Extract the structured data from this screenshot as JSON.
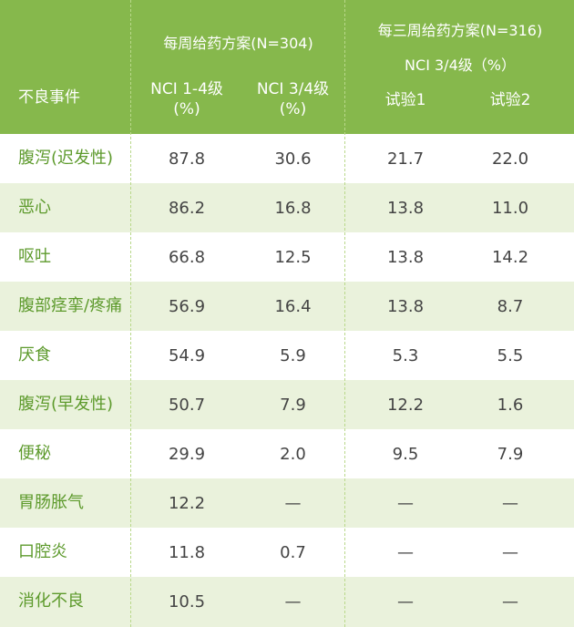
{
  "header": {
    "col_event": "不良事件",
    "group1": "每周给药方案(N=304)",
    "group2_line1": "每三周给药方案(N=316)",
    "group2_line2": "NCI 3/4级（%）",
    "sub1_line1": "NCI 1-4级",
    "sub1_line2": "(%)",
    "sub2_line1": "NCI 3/4级",
    "sub2_line2": "(%)",
    "sub3": "试验1",
    "sub4": "试验2"
  },
  "rows": [
    {
      "event": "腹泻(迟发性)",
      "v1": "87.8",
      "v2": "30.6",
      "v3": "21.7",
      "v4": "22.0"
    },
    {
      "event": "恶心",
      "v1": "86.2",
      "v2": "16.8",
      "v3": "13.8",
      "v4": "11.0"
    },
    {
      "event": "呕吐",
      "v1": "66.8",
      "v2": "12.5",
      "v3": "13.8",
      "v4": "14.2"
    },
    {
      "event": "腹部痉挛/疼痛",
      "v1": "56.9",
      "v2": "16.4",
      "v3": "13.8",
      "v4": "8.7"
    },
    {
      "event": "厌食",
      "v1": "54.9",
      "v2": "5.9",
      "v3": "5.3",
      "v4": "5.5"
    },
    {
      "event": "腹泻(早发性)",
      "v1": "50.7",
      "v2": "7.9",
      "v3": "12.2",
      "v4": "1.6"
    },
    {
      "event": "便秘",
      "v1": "29.9",
      "v2": "2.0",
      "v3": "9.5",
      "v4": "7.9"
    },
    {
      "event": "胃肠胀气",
      "v1": "12.2",
      "v2": "—",
      "v3": "—",
      "v4": "—"
    },
    {
      "event": "口腔炎",
      "v1": "11.8",
      "v2": "0.7",
      "v3": "—",
      "v4": "—"
    },
    {
      "event": "消化不良",
      "v1": "10.5",
      "v2": "—",
      "v3": "—",
      "v4": "—"
    }
  ],
  "colors": {
    "header_bg": "#86b84c",
    "row_alt_bg": "#eaf2dc",
    "event_text": "#5d9a2c",
    "value_text": "#444444"
  }
}
